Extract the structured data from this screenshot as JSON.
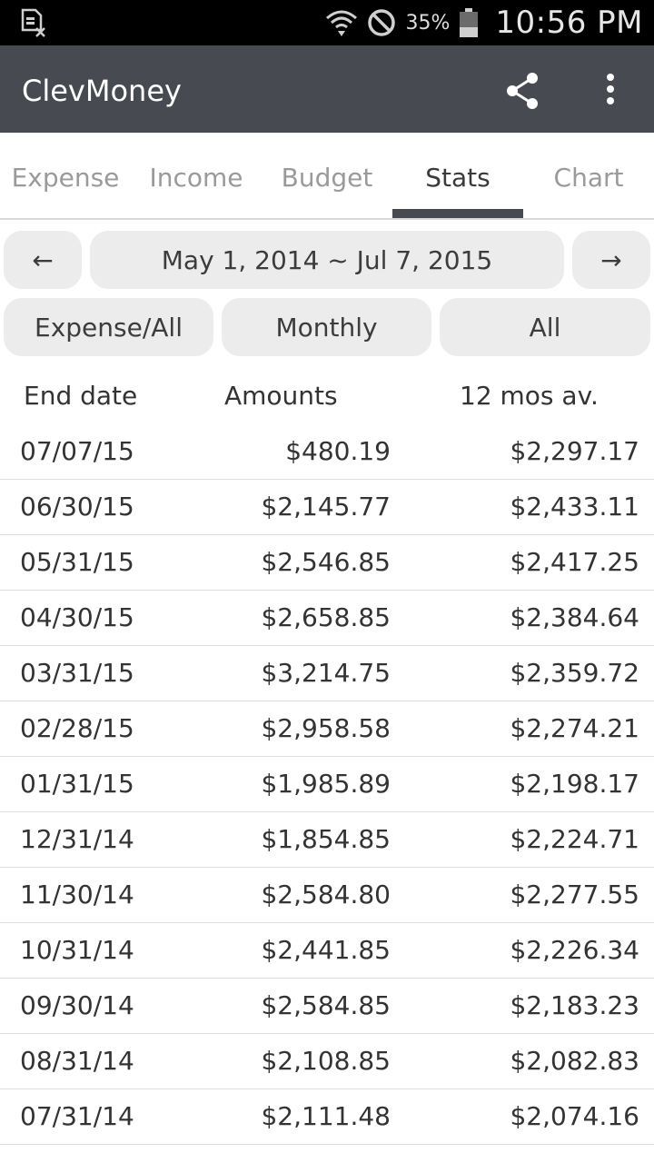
{
  "status_bar": {
    "battery_percent": "35%",
    "time": "10:56 PM",
    "icons": [
      "sim-card-off-icon",
      "wifi-icon",
      "do-not-disturb-icon",
      "battery-icon"
    ]
  },
  "app_bar": {
    "title": "ClevMoney",
    "actions": [
      "share-icon",
      "more-vert-icon"
    ]
  },
  "tabs": [
    {
      "label": "Expense"
    },
    {
      "label": "Income"
    },
    {
      "label": "Budget"
    },
    {
      "label": "Stats",
      "active": true
    },
    {
      "label": "Chart"
    }
  ],
  "filters": {
    "prev": "←",
    "range": "May 1, 2014 ~ Jul 7, 2015",
    "next": "→",
    "type": "Expense/All",
    "period": "Monthly",
    "scope": "All"
  },
  "table": {
    "headers": [
      "End date",
      "Amounts",
      "12 mos av."
    ],
    "rows": [
      [
        "07/07/15",
        "$480.19",
        "$2,297.17"
      ],
      [
        "06/30/15",
        "$2,145.77",
        "$2,433.11"
      ],
      [
        "05/31/15",
        "$2,546.85",
        "$2,417.25"
      ],
      [
        "04/30/15",
        "$2,658.85",
        "$2,384.64"
      ],
      [
        "03/31/15",
        "$3,214.75",
        "$2,359.72"
      ],
      [
        "02/28/15",
        "$2,958.58",
        "$2,274.21"
      ],
      [
        "01/31/15",
        "$1,985.89",
        "$2,198.17"
      ],
      [
        "12/31/14",
        "$1,854.85",
        "$2,224.71"
      ],
      [
        "11/30/14",
        "$2,584.80",
        "$2,277.55"
      ],
      [
        "10/31/14",
        "$2,441.85",
        "$2,226.34"
      ],
      [
        "09/30/14",
        "$2,584.85",
        "$2,183.23"
      ],
      [
        "08/31/14",
        "$2,108.85",
        "$2,082.83"
      ],
      [
        "07/31/14",
        "$2,111.48",
        "$2,074.16"
      ]
    ]
  },
  "colors": {
    "app_bar": "#474b51",
    "status_bar": "#000000",
    "pill": "#ececec",
    "tab_indicator": "#474b51"
  }
}
